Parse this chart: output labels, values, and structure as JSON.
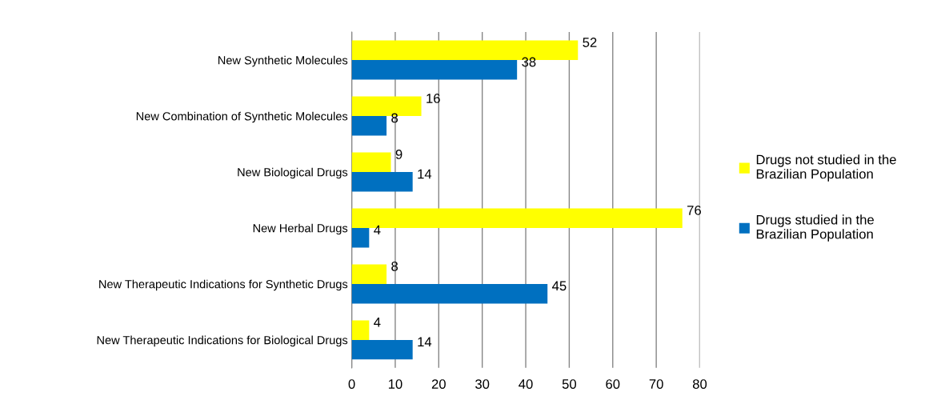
{
  "chart_data": {
    "type": "bar",
    "orientation": "horizontal",
    "categories": [
      "New Synthetic Molecules",
      "New Combination of Synthetic Molecules",
      "New Biological Drugs",
      "New Herbal Drugs",
      "New Therapeutic Indications for Synthetic Drugs",
      "New Therapeutic Indications for Biological Drugs"
    ],
    "series": [
      {
        "name": "Drugs not studied in the Brazilian Population",
        "color": "#ffff00",
        "values": [
          52,
          16,
          9,
          76,
          8,
          4
        ]
      },
      {
        "name": "Drugs studied in the Brazilian Population",
        "color": "#0070c0",
        "values": [
          38,
          8,
          14,
          4,
          45,
          14
        ]
      }
    ],
    "xlim": [
      0,
      80
    ],
    "xticks": [
      0,
      10,
      20,
      30,
      40,
      50,
      60,
      70,
      80
    ],
    "grid": "x",
    "legend": "right",
    "data_labels": true
  }
}
